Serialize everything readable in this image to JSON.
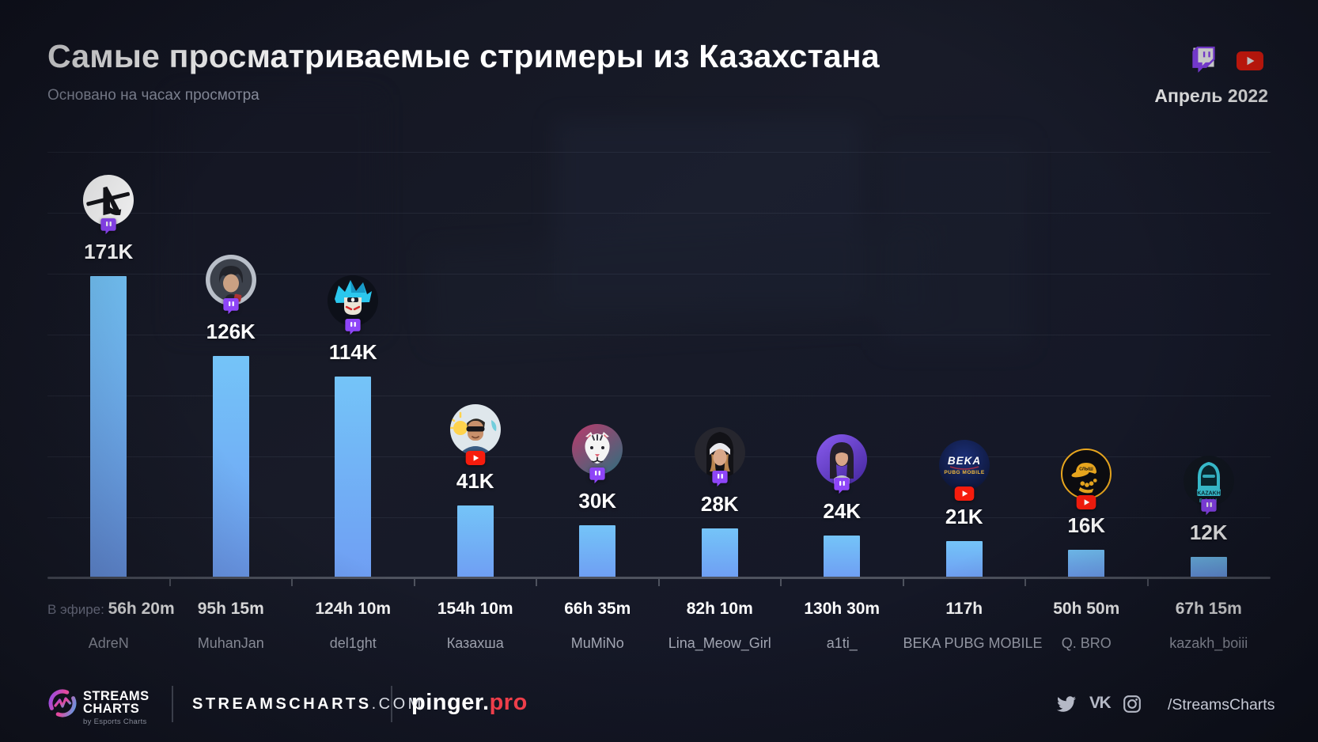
{
  "header": {
    "title": "Самые просматриваемые стримеры из Казахстана",
    "subtitle": "Основано на часах просмотра",
    "period": "Апрель 2022",
    "platform_icons": [
      "twitch-icon",
      "youtube-icon"
    ]
  },
  "chart_data": {
    "type": "bar",
    "title": "Самые просматриваемые стримеры из Казахстана",
    "subtitle": "Основано на часах просмотра",
    "period": "Апрель 2022",
    "unit": "thousand hours watched",
    "ylim": [
      0,
      180
    ],
    "grid": true,
    "legend": "none",
    "categories": [
      "AdreN",
      "MuhanJan",
      "del1ght",
      "Казахша",
      "MuMiNo",
      "Lina_Meow_Girl",
      "a1ti_",
      "BEKA PUBG MOBILE",
      "Q. BRO",
      "kazakh_boiii"
    ],
    "values": [
      171,
      126,
      114,
      41,
      30,
      28,
      24,
      21,
      16,
      12
    ],
    "value_labels": [
      "171K",
      "126K",
      "114K",
      "41K",
      "30K",
      "28K",
      "24K",
      "21K",
      "16K",
      "12K"
    ],
    "airtime_label": "В эфире:",
    "airtimes": [
      "56h 20m",
      "95h 15m",
      "124h 10m",
      "154h 10m",
      "66h 35m",
      "82h 10m",
      "130h 30m",
      "117h",
      "50h 50m",
      "67h 15m"
    ],
    "platforms": [
      "twitch",
      "twitch",
      "twitch",
      "youtube",
      "twitch",
      "twitch",
      "twitch",
      "youtube",
      "youtube",
      "twitch"
    ],
    "bar_gradient": [
      "#74c4f8",
      "#6f9ef3"
    ]
  },
  "avatars": [
    {
      "style": "ak",
      "bg": "#ffffff",
      "fg": "#15151a"
    },
    {
      "style": "photo",
      "bg": "#b9bfc9",
      "inner": "#3c414b",
      "skin": "#caa183",
      "hair": "#22242b",
      "accent": "#b03535"
    },
    {
      "style": "anime",
      "bg": "#0d1019",
      "hair": "#2bc7ee",
      "hair2": "#0f86b8",
      "skin": "#eae4d6",
      "eyes": "#d42b2b"
    },
    {
      "style": "cartoon",
      "bg": "#dfe7ec",
      "skin": "#c8906b",
      "sun": "#ffd34d",
      "glasses": "#15151a",
      "shirt": "#3b5d85",
      "hair": "#2a2622"
    },
    {
      "style": "tiger",
      "bg1": "#bb3a6c",
      "bg2": "#2d6f7e",
      "face": "#f4f4f4",
      "nose": "#e06a7a",
      "stripe": "#3a3a44"
    },
    {
      "style": "nun",
      "bg": "#26262e",
      "hood": "#121217",
      "band": "#e9e9ee",
      "skin": "#d9a88a",
      "hair": "#b9854f"
    },
    {
      "style": "girl",
      "bg1": "#8a5cf0",
      "bg2": "#43269c",
      "hair": "#241f2c",
      "skin": "#d8a488",
      "top": "#cfd2da"
    },
    {
      "style": "beka",
      "bg1": "#1b2f77",
      "bg2": "#0a1028",
      "line1": "BEKA",
      "line2": "PUBG MOBILE",
      "c1": "#ffffff",
      "c2": "#f0b93c"
    },
    {
      "style": "cap",
      "bg": "#0c0c10",
      "ring": "#e8a61e",
      "fg": "#e8a61e",
      "cap_text": "СЛЫШ"
    },
    {
      "style": "hood",
      "bg": "#11161f",
      "fg": "#3fd6e8",
      "label1": "KAZAKH",
      "label2": "BOIII",
      "dark": "#0a2c33"
    }
  ],
  "footer": {
    "brand": {
      "line1": "STREAMS",
      "line2": "CHARTS",
      "byline": "by Esports Charts"
    },
    "site_name": "STREAMSCHARTS",
    "site_tld": ".COM",
    "sponsor_name": "pinger.",
    "sponsor_suffix": "pro",
    "social_icons": [
      "twitter-icon",
      "vk-icon",
      "instagram-icon"
    ],
    "handle": "/StreamsCharts"
  },
  "colors": {
    "background": "#161a26",
    "bar_top": "#74c4f8",
    "bar_bottom": "#6f9ef3",
    "twitch_purple": "#9146ff",
    "youtube_red": "#f61c0d",
    "sponsor_red": "#ee3e4a",
    "axis_gray": "#4e525e"
  }
}
